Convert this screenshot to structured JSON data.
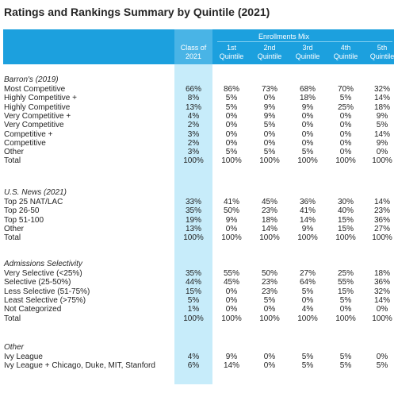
{
  "title": "Ratings and Rankings Summary by Quintile (2021)",
  "header": {
    "group_label": "Enrollments Mix",
    "columns": [
      {
        "line1": "Class of",
        "line2": "2021"
      },
      {
        "line1": "1st",
        "line2": "Quintile"
      },
      {
        "line1": "2nd",
        "line2": "Quintile"
      },
      {
        "line1": "3rd",
        "line2": "Quintile"
      },
      {
        "line1": "4th",
        "line2": "Quintile"
      },
      {
        "line1": "5th",
        "line2": "Quintile"
      }
    ]
  },
  "sections": [
    {
      "heading": "Barron's (2019)",
      "rows": [
        {
          "label": "Most Competitive",
          "values": [
            "66%",
            "86%",
            "73%",
            "68%",
            "70%",
            "32%"
          ]
        },
        {
          "label": "Highly Competitive +",
          "values": [
            "8%",
            "5%",
            "0%",
            "18%",
            "5%",
            "14%"
          ]
        },
        {
          "label": "Highly Competitive",
          "values": [
            "13%",
            "5%",
            "9%",
            "9%",
            "25%",
            "18%"
          ]
        },
        {
          "label": "Very Competitive +",
          "values": [
            "4%",
            "0%",
            "9%",
            "0%",
            "0%",
            "9%"
          ]
        },
        {
          "label": "Very Competitive",
          "values": [
            "2%",
            "0%",
            "5%",
            "0%",
            "0%",
            "5%"
          ]
        },
        {
          "label": "Competitive +",
          "values": [
            "3%",
            "0%",
            "0%",
            "0%",
            "0%",
            "14%"
          ]
        },
        {
          "label": "Competitive",
          "values": [
            "2%",
            "0%",
            "0%",
            "0%",
            "0%",
            "9%"
          ]
        },
        {
          "label": "Other",
          "values": [
            "3%",
            "5%",
            "5%",
            "5%",
            "0%",
            "0%"
          ]
        },
        {
          "label": "Total",
          "values": [
            "100%",
            "100%",
            "100%",
            "100%",
            "100%",
            "100%"
          ]
        }
      ]
    },
    {
      "heading": "U.S. News (2021)",
      "rows": [
        {
          "label": "Top 25 NAT/LAC",
          "values": [
            "33%",
            "41%",
            "45%",
            "36%",
            "30%",
            "14%"
          ]
        },
        {
          "label": "Top 26-50",
          "values": [
            "35%",
            "50%",
            "23%",
            "41%",
            "40%",
            "23%"
          ]
        },
        {
          "label": "Top 51-100",
          "values": [
            "19%",
            "9%",
            "18%",
            "14%",
            "15%",
            "36%"
          ]
        },
        {
          "label": "Other",
          "values": [
            "13%",
            "0%",
            "14%",
            "9%",
            "15%",
            "27%"
          ]
        },
        {
          "label": "Total",
          "values": [
            "100%",
            "100%",
            "100%",
            "100%",
            "100%",
            "100%"
          ]
        }
      ]
    },
    {
      "heading": "Admissions Selectivity",
      "rows": [
        {
          "label": "Very Selective (<25%)",
          "values": [
            "35%",
            "55%",
            "50%",
            "27%",
            "25%",
            "18%"
          ]
        },
        {
          "label": "Selective (25-50%)",
          "values": [
            "44%",
            "45%",
            "23%",
            "64%",
            "55%",
            "36%"
          ]
        },
        {
          "label": "Less Selective (51-75%)",
          "values": [
            "15%",
            "0%",
            "23%",
            "5%",
            "15%",
            "32%"
          ]
        },
        {
          "label": "Least Selective (>75%)",
          "values": [
            "5%",
            "0%",
            "5%",
            "0%",
            "5%",
            "14%"
          ]
        },
        {
          "label": "Not Categorized",
          "values": [
            "1%",
            "0%",
            "0%",
            "4%",
            "0%",
            "0%"
          ]
        },
        {
          "label": "Total",
          "values": [
            "100%",
            "100%",
            "100%",
            "100%",
            "100%",
            "100%"
          ]
        }
      ]
    },
    {
      "heading": "Other",
      "rows": [
        {
          "label": "Ivy League",
          "values": [
            "4%",
            "9%",
            "0%",
            "5%",
            "5%",
            "0%"
          ]
        },
        {
          "label": "Ivy League + Chicago, Duke, MIT, Stanford",
          "values": [
            "6%",
            "14%",
            "0%",
            "5%",
            "5%",
            "5%"
          ]
        }
      ]
    }
  ],
  "colors": {
    "header_bg": "#1ca0de",
    "highlight_column": "#c7ecfa",
    "header_text": "#ffffff"
  }
}
